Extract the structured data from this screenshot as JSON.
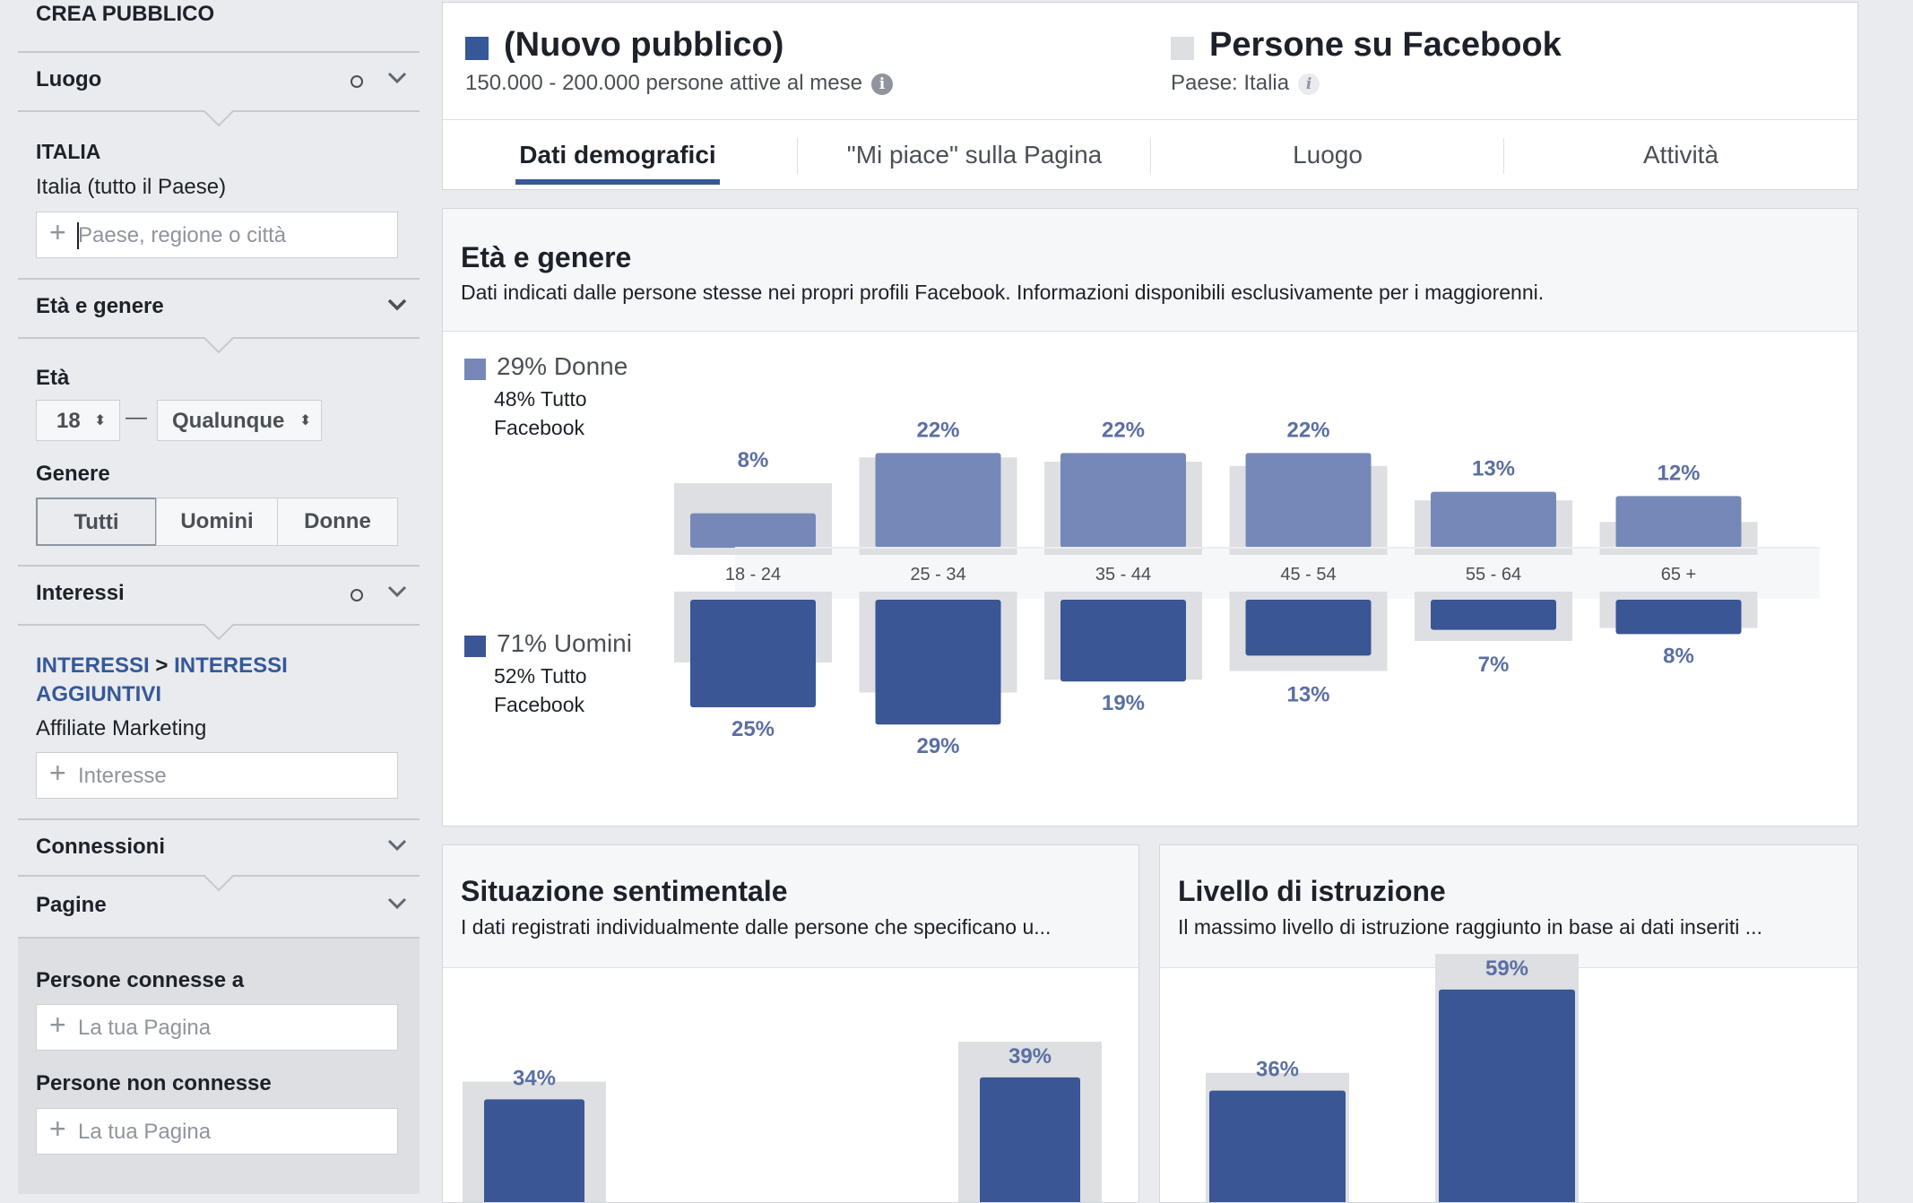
{
  "sidebar": {
    "title": "CREA PUBBLICO",
    "location": {
      "label": "Luogo",
      "country": "ITALIA",
      "region": "Italia (tutto il Paese)",
      "placeholder": "Paese, regione o città"
    },
    "age_gender": {
      "label": "Età e genere",
      "age_label": "Età",
      "age_min": "18",
      "age_sep": "—",
      "age_max": "Qualunque",
      "gender_label": "Genere",
      "gender_options": [
        "Tutti",
        "Uomini",
        "Donne"
      ],
      "gender_selected": "Tutti"
    },
    "interests": {
      "label": "Interessi",
      "path_1": "INTERESSI",
      "path_sep": ">",
      "path_2a": "INTERESSI",
      "path_2b": "AGGIUNTIVI",
      "value": "Affiliate Marketing",
      "placeholder": "Interesse"
    },
    "connections": {
      "label": "Connessioni"
    },
    "pages": {
      "label": "Pagine",
      "connected_label": "Persone connesse a",
      "connected_placeholder": "La tua Pagina",
      "not_connected_label": "Persone non connesse",
      "not_connected_placeholder": "La tua Pagina"
    }
  },
  "audience": {
    "new": {
      "title": "(Nuovo pubblico)",
      "subtitle": "150.000 - 200.000 persone attive al mese",
      "color": "#365899"
    },
    "facebook": {
      "title": "Persone su Facebook",
      "subtitle": "Paese: Italia",
      "color": "#dddfe2"
    }
  },
  "tabs": [
    "Dati demografici",
    "\"Mi piace\" sulla Pagina",
    "Luogo",
    "Attività"
  ],
  "active_tab": "Dati demografici",
  "age_gender_panel": {
    "title": "Età e genere",
    "description": "Dati indicati dalle persone stesse nei propri profili Facebook. Informazioni disponibili esclusivamente per i maggiorenni.",
    "women": {
      "pct": "29% Donne",
      "all_fb": "48% Tutto Facebook",
      "color": "#7688b7"
    },
    "men": {
      "pct": "71% Uomini",
      "all_fb": "52% Tutto Facebook",
      "color": "#3b5695"
    }
  },
  "relationship_panel": {
    "title": "Situazione sentimentale",
    "description": "I dati registrati individualmente dalle persone che specificano u..."
  },
  "education_panel": {
    "title": "Livello di istruzione",
    "description": "Il massimo livello di istruzione raggiunto in base ai dati inseriti ..."
  },
  "chart_data": [
    {
      "type": "bar",
      "categories": [
        "18 - 24",
        "25 - 34",
        "35 - 44",
        "45 - 54",
        "55 - 64",
        "65 +"
      ],
      "series": [
        {
          "name": "Donne",
          "values": [
            8,
            22,
            22,
            22,
            13,
            12
          ],
          "labels": [
            "8%",
            "22%",
            "22%",
            "22%",
            "13%",
            "12%"
          ]
        },
        {
          "name": "Uomini",
          "values": [
            25,
            29,
            19,
            13,
            7,
            8
          ],
          "labels": [
            "25%",
            "29%",
            "19%",
            "13%",
            "7%",
            "8%"
          ]
        }
      ],
      "background_values_women": [
        15,
        21,
        20,
        19,
        11,
        6
      ],
      "background_values_men": [
        15,
        22,
        19,
        17,
        10,
        7
      ],
      "ylabel": "",
      "xlabel": ""
    },
    {
      "type": "bar",
      "title": "Situazione sentimentale",
      "values": [
        34,
        39
      ],
      "labels": [
        "34%",
        "39%"
      ]
    },
    {
      "type": "bar",
      "title": "Livello di istruzione",
      "values": [
        36,
        59
      ],
      "labels": [
        "36%",
        "59%"
      ]
    }
  ]
}
